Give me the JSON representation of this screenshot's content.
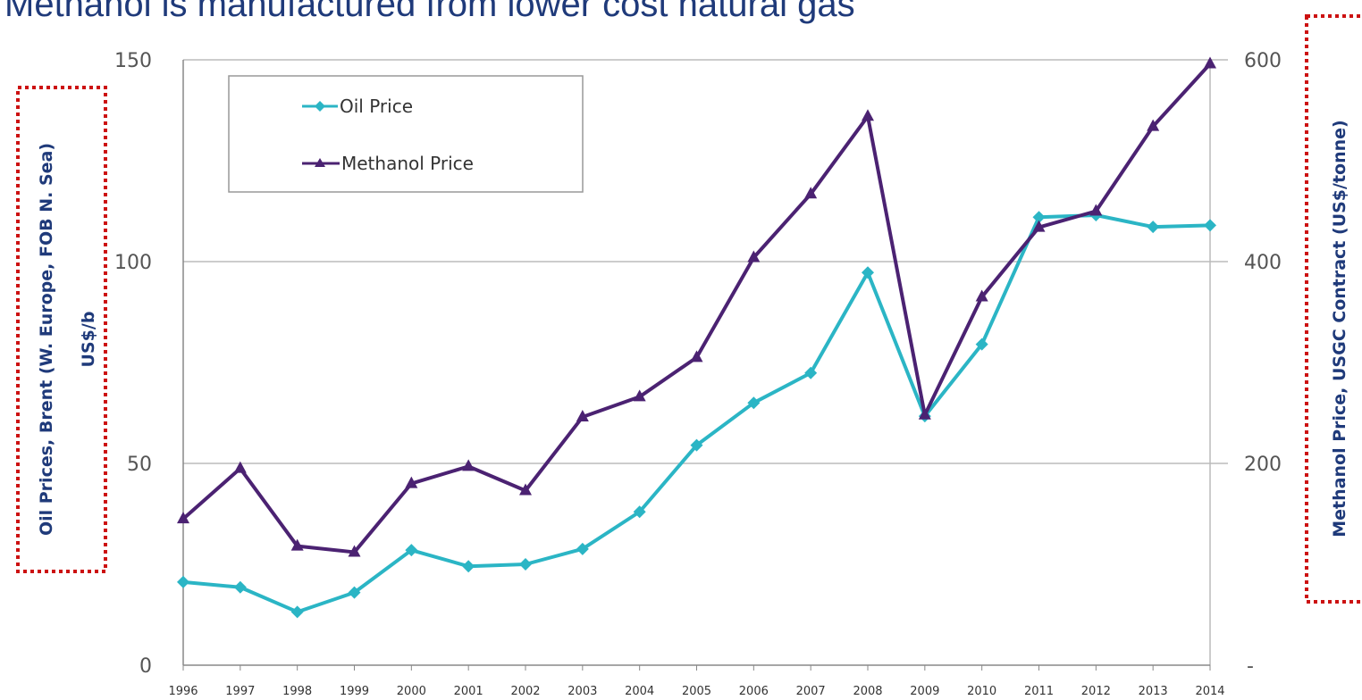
{
  "chart_data": {
    "type": "line",
    "title": "Methanol is manufactured from lower cost natural gas",
    "x": [
      "1996",
      "1997",
      "1998",
      "1999",
      "2000",
      "2001",
      "2002",
      "2003",
      "2004",
      "2005",
      "2006",
      "2007",
      "2008",
      "2009",
      "2010",
      "2011",
      "2012",
      "2013",
      "2014"
    ],
    "series": [
      {
        "name": "Oil Price",
        "axis": "left",
        "color": "#2bb5c5",
        "marker": "diamond",
        "values": [
          20.6,
          19.3,
          13.2,
          18.0,
          28.5,
          24.5,
          25.0,
          28.8,
          38.0,
          54.5,
          65.0,
          72.4,
          97.3,
          61.7,
          79.5,
          111.0,
          111.5,
          108.6,
          109.0
        ]
      },
      {
        "name": "Methanol Price",
        "axis": "right",
        "color": "#4b2272",
        "marker": "triangle",
        "values": [
          145,
          195,
          118,
          112,
          180,
          197,
          173,
          246,
          266,
          305,
          404,
          467,
          544,
          248,
          365,
          434,
          450,
          534,
          596
        ]
      }
    ],
    "yleft": {
      "label_line1": "Oil Prices, Brent (W. Europe, FOB N. Sea)",
      "label_line2": "US$/b",
      "lim": [
        0,
        150
      ],
      "ticks": [
        "0",
        "50",
        "100",
        "150"
      ]
    },
    "yright": {
      "label": "Methanol Price, USGC Contract (US$/tonne)",
      "lim": [
        0,
        600
      ],
      "ticks": [
        "-",
        "200",
        "400",
        "600"
      ]
    },
    "grid": true,
    "legend_position": "top-left",
    "colors": {
      "title": "#1f3a7a",
      "axis_label": "#1f3a7a",
      "gridline": "#bbbbbb",
      "highlight_box": "#cc1111"
    }
  }
}
